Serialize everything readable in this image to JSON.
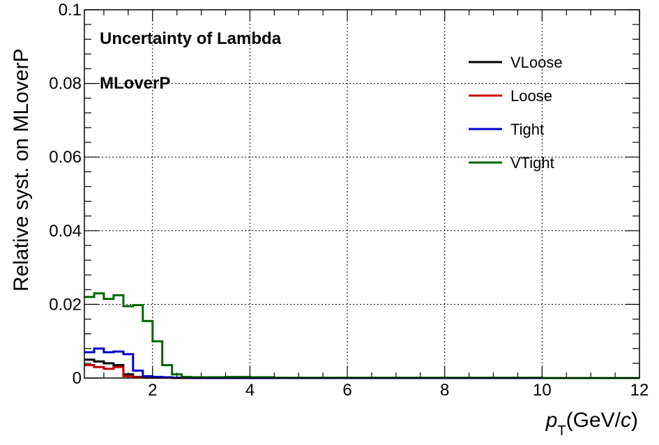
{
  "chart_data": {
    "type": "line",
    "title": "",
    "annotations": [
      "Uncertainty of Lambda",
      "MLoverP"
    ],
    "xlabel": {
      "var": "p",
      "sub": "T",
      "unit_prefix": "(GeV/",
      "unit_var": "c",
      "unit_suffix": ")"
    },
    "ylabel": "Relative syst. on MLoverP",
    "xlim": [
      0.6,
      12
    ],
    "ylim": [
      0,
      0.1
    ],
    "x_ticks": [
      2,
      4,
      6,
      8,
      10,
      12
    ],
    "x_tick_labels": [
      "2",
      "4",
      "6",
      "8",
      "10",
      "12"
    ],
    "y_ticks": [
      0,
      0.02,
      0.04,
      0.06,
      0.08,
      0.1
    ],
    "y_tick_labels": [
      "0",
      "0.02",
      "0.04",
      "0.06",
      "0.08",
      "0.1"
    ],
    "grid": true,
    "legend_position": "top-right",
    "bin_edges": [
      0.6,
      0.8,
      1.0,
      1.2,
      1.4,
      1.6,
      1.8,
      2.0,
      2.2,
      2.4,
      2.6,
      2.8,
      3.0,
      3.5,
      4.0,
      4.5,
      5.0,
      6.0,
      7.0,
      8.0,
      9.0,
      10.0,
      12.0
    ],
    "series": [
      {
        "name": "VLoose",
        "color": "#000000",
        "values": [
          0.005,
          0.0045,
          0.004,
          0.0035,
          0.001,
          0.0003,
          0.0002,
          0.0001,
          0.0001,
          0.0001,
          0.0,
          0.0,
          0.0,
          0.0,
          0.0,
          0.0,
          0.0,
          0.0,
          0.0,
          0.0,
          0.0,
          0.0
        ]
      },
      {
        "name": "Loose",
        "color": "#cc0000",
        "values": [
          0.0035,
          0.003,
          0.0025,
          0.003,
          0.0005,
          0.0002,
          0.0001,
          0.0001,
          0.0001,
          0.0,
          0.0,
          0.0,
          0.0,
          0.0,
          0.0,
          0.0,
          0.0,
          0.0,
          0.0,
          0.0,
          0.0,
          0.0
        ]
      },
      {
        "name": "Tight",
        "color": "#0000cc",
        "values": [
          0.007,
          0.008,
          0.007,
          0.0072,
          0.0065,
          0.002,
          0.0005,
          0.0003,
          0.0002,
          0.0001,
          0.0001,
          0.0,
          0.0,
          0.0,
          0.0,
          0.0,
          0.0,
          0.0,
          0.0,
          0.0,
          0.0,
          0.0
        ]
      },
      {
        "name": "VTight",
        "color": "#006600",
        "values": [
          0.022,
          0.023,
          0.0215,
          0.0225,
          0.0195,
          0.0198,
          0.0155,
          0.01,
          0.0035,
          0.001,
          0.0003,
          0.0002,
          0.0002,
          0.0003,
          0.0002,
          0.0001,
          0.0001,
          0.0001,
          0.0001,
          0.0001,
          0.0001,
          0.0
        ]
      }
    ]
  }
}
